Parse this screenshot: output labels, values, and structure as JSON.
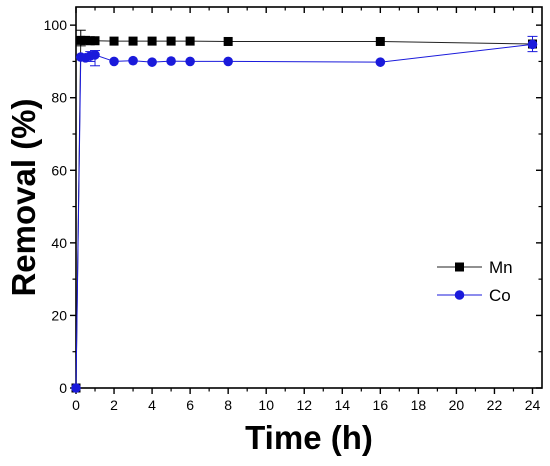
{
  "chart_data": {
    "type": "line",
    "xlabel": "Time (h)",
    "ylabel": "Removal (%)",
    "xlim": [
      0,
      24.5
    ],
    "ylim": [
      0,
      105
    ],
    "xticks": [
      0,
      2,
      4,
      6,
      8,
      10,
      12,
      14,
      16,
      18,
      20,
      22,
      24
    ],
    "yticks": [
      0,
      20,
      40,
      60,
      80,
      100
    ],
    "grid": false,
    "legend_position": "right-middle",
    "series": [
      {
        "name": "Mn",
        "marker": "square",
        "color": "#000000",
        "x": [
          0,
          0.25,
          0.5,
          0.75,
          1,
          2,
          3,
          4,
          5,
          6,
          8,
          16,
          24
        ],
        "y": [
          0,
          95.8,
          95.8,
          95.7,
          95.7,
          95.6,
          95.6,
          95.6,
          95.6,
          95.6,
          95.5,
          95.5,
          94.8
        ],
        "error_bars": [
          {
            "x": 0.25,
            "minus": 1.5,
            "plus": 2.8
          }
        ]
      },
      {
        "name": "Co",
        "marker": "circle",
        "color": "#1a1adb",
        "x": [
          0,
          0.25,
          0.5,
          0.75,
          1,
          2,
          3,
          4,
          5,
          6,
          8,
          16,
          24
        ],
        "y": [
          0,
          91.2,
          91,
          91.5,
          91.8,
          90,
          90.2,
          89.8,
          90.1,
          90,
          90,
          89.8,
          94.7
        ],
        "error_bars": [
          {
            "x": 0.75,
            "minus": 1.5,
            "plus": 1.2
          },
          {
            "x": 1,
            "minus": 3,
            "plus": 1.2
          },
          {
            "x": 24,
            "minus": 2,
            "plus": 2.2
          }
        ]
      }
    ]
  }
}
